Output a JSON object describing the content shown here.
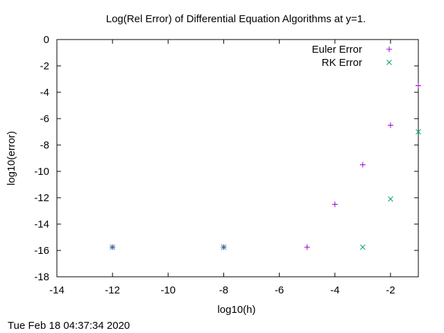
{
  "chart_data": {
    "type": "scatter",
    "title": "Log(Rel Error) of Differential Equation Algorithms at y=1.",
    "xlabel": "log10(h)",
    "ylabel": "log10(error)",
    "xlim": [
      -14,
      -1
    ],
    "ylim": [
      -18,
      0
    ],
    "xticks": [
      "-14",
      "-12",
      "-10",
      "-8",
      "-6",
      "-4",
      "-2"
    ],
    "yticks": [
      "0",
      "-2",
      "-4",
      "-6",
      "-8",
      "-10",
      "-12",
      "-14",
      "-16",
      "-18"
    ],
    "grid": false,
    "legend_position": "top-right",
    "series": [
      {
        "name": "Euler Error",
        "marker": "plus",
        "color": "#9400d3",
        "points": [
          {
            "x": -12,
            "y": -15.75
          },
          {
            "x": -8,
            "y": -15.75
          },
          {
            "x": -5,
            "y": -15.75
          },
          {
            "x": -4,
            "y": -12.5
          },
          {
            "x": -3,
            "y": -9.5
          },
          {
            "x": -2,
            "y": -6.5
          },
          {
            "x": -1,
            "y": -3.5
          }
        ]
      },
      {
        "name": "RK Error",
        "marker": "cross",
        "color": "#009e73",
        "points": [
          {
            "x": -12,
            "y": -15.75
          },
          {
            "x": -8,
            "y": -15.75
          },
          {
            "x": -3,
            "y": -15.75
          },
          {
            "x": -2,
            "y": -12.1
          },
          {
            "x": -1,
            "y": -7.0
          }
        ]
      }
    ]
  },
  "timestamp": "Tue Feb 18 04:37:34 2020"
}
